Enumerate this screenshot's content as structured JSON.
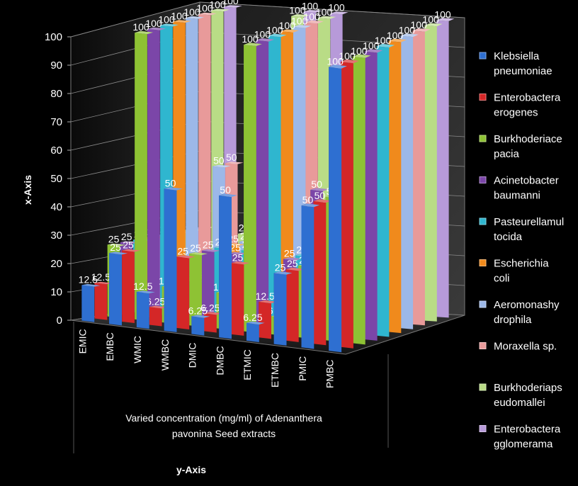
{
  "chart_data": {
    "type": "bar",
    "subtype": "3d-column",
    "categories": [
      "EMIC",
      "EMBC",
      "WMIC",
      "WMBC",
      "DMIC",
      "DMBC",
      "ETMIC",
      "ETMBC",
      "PMIC",
      "PMBC"
    ],
    "xlabel": "Varied concentration (mg/ml) of Adenanthera pavonina Seed extracts",
    "xlabel_lines": [
      "Varied concentration (mg/ml) of Adenanthera",
      "pavonina Seed extracts"
    ],
    "axis_title_bottom": "y-Axis",
    "ylabel": "x-Axis",
    "ylim": [
      0,
      100
    ],
    "yticks": [
      0,
      10,
      20,
      30,
      40,
      50,
      60,
      70,
      80,
      90,
      100
    ],
    "grid": true,
    "legend_position": "right",
    "background": "#000000",
    "text_color": "#ffffff",
    "series": [
      {
        "name": "Klebsiella pneumoniae",
        "legend_lines": [
          "Klebsiella",
          "pneumoniae"
        ],
        "color": "#2e6fd1",
        "values": [
          12.5,
          25,
          12.5,
          50,
          6.25,
          50,
          6.25,
          25,
          50,
          100
        ]
      },
      {
        "name": "Enterobactera erogenes",
        "legend_lines": [
          "Enterobactera",
          "erogenes"
        ],
        "color": "#d42727",
        "values": [
          12.5,
          25,
          6.25,
          25,
          6.25,
          25,
          12.5,
          25,
          50,
          100
        ]
      },
      {
        "name": "Burkhoderiace pacia",
        "legend_lines": [
          "Burkhoderiace",
          "pacia"
        ],
        "color": "#8ec234",
        "values": [
          25,
          100,
          12.5,
          25,
          12.5,
          100,
          6.25,
          25,
          50,
          100
        ]
      },
      {
        "name": "Acinetobacter baumanni",
        "legend_lines": [
          "Acinetobacter",
          "baumanni"
        ],
        "color": "#7b46a8",
        "values": [
          25,
          100,
          12.5,
          25,
          25,
          100,
          25,
          50,
          50,
          100
        ]
      },
      {
        "name": "Pasteurellamul tocida",
        "legend_lines": [
          "Pasteurellamul",
          "tocida"
        ],
        "color": "#2fb6cf",
        "values": [
          25,
          100,
          12.5,
          25,
          25,
          100,
          25,
          25,
          50,
          100
        ]
      },
      {
        "name": "Escherichia coli",
        "legend_lines": [
          "Escherichia",
          "coli"
        ],
        "color": "#f08a1c",
        "values": [
          25,
          100,
          12.5,
          25,
          25,
          100,
          25,
          50,
          50,
          100
        ]
      },
      {
        "name": "Aeromonashy drophila",
        "legend_lines": [
          "Aeromonashy",
          "drophila"
        ],
        "color": "#9cb8e8",
        "values": [
          25,
          100,
          50,
          25,
          50,
          100,
          25,
          50,
          50,
          100
        ]
      },
      {
        "name": "Moraxella sp.",
        "legend_lines": [
          "Moraxella sp."
        ],
        "color": "#e89a9a",
        "values": [
          25,
          100,
          50,
          25,
          50,
          100,
          12.5,
          50,
          50,
          100
        ]
      },
      {
        "name": "Burkhoderiaps eudomallei",
        "legend_lines": [
          "Burkhoderiaps",
          "eudomallei"
        ],
        "color": "#b9dc86",
        "values": [
          25,
          100,
          25,
          25,
          100,
          100,
          12.5,
          25,
          50,
          100
        ]
      },
      {
        "name": "Enterobactera gglomerama",
        "legend_lines": [
          "Enterobactera",
          "gglomerama"
        ],
        "color": "#b79ad9",
        "values": [
          25,
          100,
          25,
          25,
          100,
          100,
          12.5,
          50,
          50,
          100
        ]
      }
    ]
  }
}
